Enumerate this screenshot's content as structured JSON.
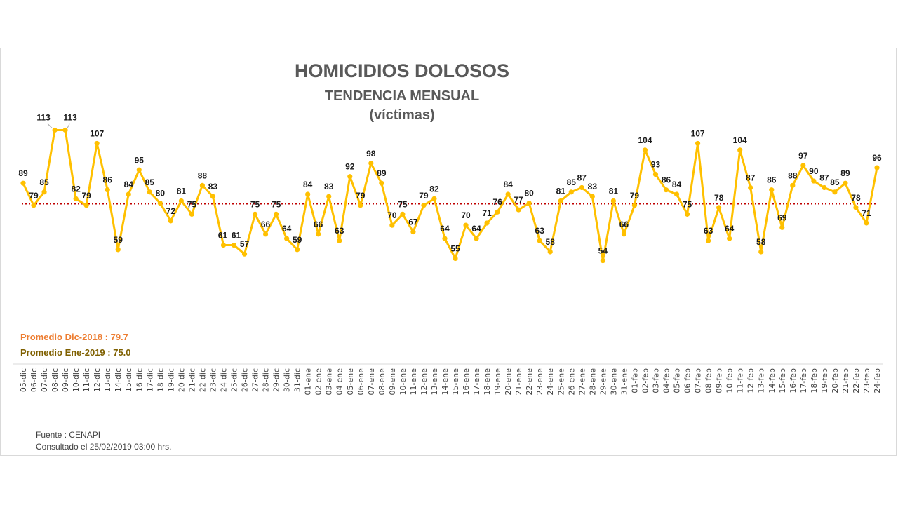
{
  "chart_data": {
    "type": "line",
    "title": "HOMICIDIOS DOLOSOS",
    "subtitle": "TENDENCIA MENSUAL",
    "unit": "(víctimas)",
    "categories": [
      "05-dic",
      "06-dic",
      "07-dic",
      "08-dic",
      "09-dic",
      "10-dic",
      "11-dic",
      "12-dic",
      "13-dic",
      "14-dic",
      "15-dic",
      "16-dic",
      "17-dic",
      "18-dic",
      "19-dic",
      "20-dic",
      "21-dic",
      "22-dic",
      "23-dic",
      "24-dic",
      "25-dic",
      "26-dic",
      "27-dic",
      "28-dic",
      "29-dic",
      "30-dic",
      "31-dic",
      "01-ene",
      "02-ene",
      "03-ene",
      "04-ene",
      "05-ene",
      "06-ene",
      "07-ene",
      "08-ene",
      "09-ene",
      "10-ene",
      "11-ene",
      "12-ene",
      "13-ene",
      "14-ene",
      "15-ene",
      "16-ene",
      "17-ene",
      "18-ene",
      "19-ene",
      "20-ene",
      "21-ene",
      "22-ene",
      "23-ene",
      "24-ene",
      "25-ene",
      "26-ene",
      "27-ene",
      "28-ene",
      "29-ene",
      "30-ene",
      "31-ene",
      "01-feb",
      "02-feb",
      "03-feb",
      "04-feb",
      "05-feb",
      "06-feb",
      "07-feb",
      "08-feb",
      "09-feb",
      "10-feb",
      "11-feb",
      "12-feb",
      "13-feb",
      "14-feb",
      "15-feb",
      "16-feb",
      "17-feb",
      "18-feb",
      "19-feb",
      "20-feb",
      "21-feb",
      "22-feb",
      "23-feb",
      "24-feb"
    ],
    "series": [
      {
        "values": [
          89,
          79,
          85,
          113,
          113,
          82,
          79,
          107,
          86,
          59,
          84,
          95,
          85,
          80,
          72,
          81,
          75,
          88,
          83,
          61,
          61,
          57,
          75,
          66,
          75,
          64,
          59,
          84,
          66,
          83,
          63,
          92,
          79,
          98,
          89,
          70,
          75,
          67,
          79,
          82,
          64,
          55,
          70,
          64,
          71,
          76,
          84,
          77,
          80,
          63,
          58,
          81,
          85,
          87,
          83,
          54,
          81,
          66,
          79,
          104,
          93,
          86,
          84,
          75,
          107,
          63,
          78,
          64,
          104,
          87,
          58,
          86,
          69,
          88,
          97,
          90,
          87,
          85,
          89,
          78,
          71,
          96
        ],
        "color": "#ffc000"
      }
    ],
    "reference_line": {
      "value": 79.7,
      "color": "#c00000",
      "style": "dotted"
    },
    "ylim": [
      40,
      120
    ],
    "grid": false,
    "legend": "none",
    "annotations": {
      "avg_dec": "Promedio Dic-2018  : 79.7",
      "avg_jan": "Promedio Ene-2019 : 75.0",
      "avg_dec_color": "#ed7d31",
      "avg_jan_color": "#7f6000"
    }
  },
  "source": {
    "line1": "Fuente : CENAPI",
    "line2": "Consultado el 25/02/2019  03:00 hrs."
  }
}
